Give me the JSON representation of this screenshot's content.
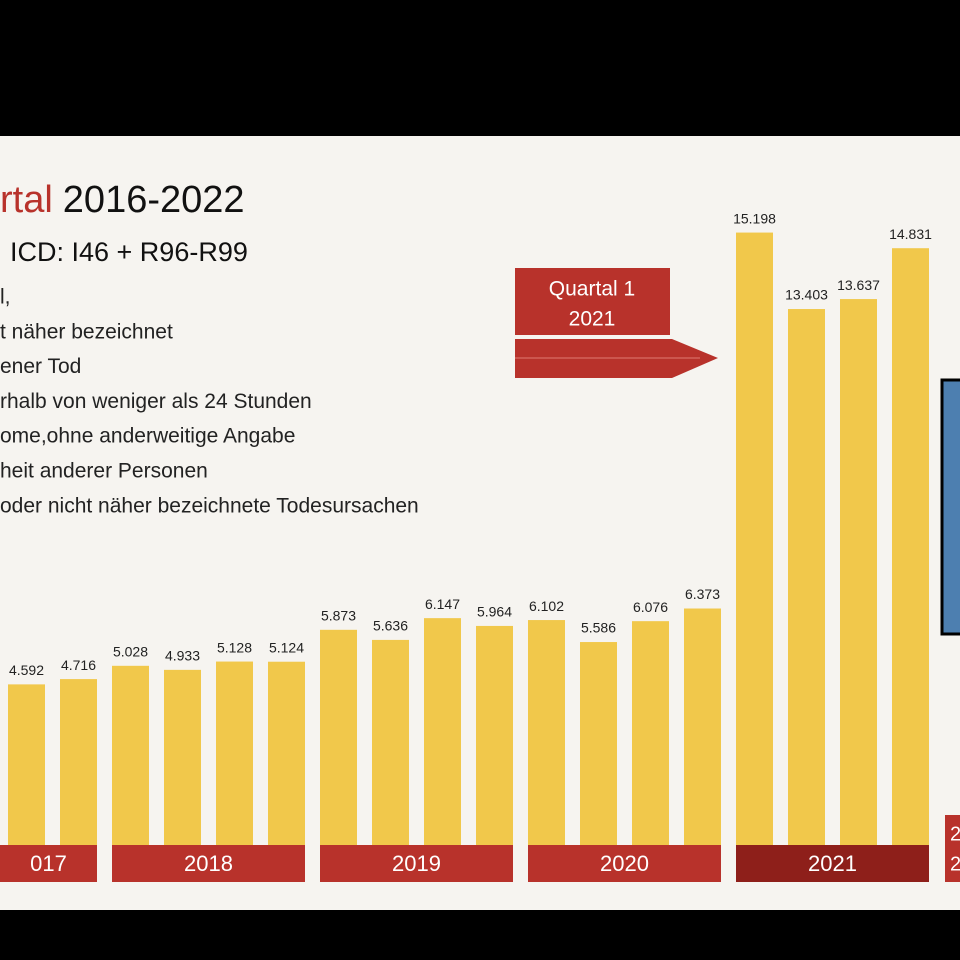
{
  "chart_data": {
    "type": "bar",
    "title_red": "rtal",
    "title": "2016-2022",
    "subtitle": "ICD: I46 + R96-R99",
    "lines": [
      "l,",
      "t näher bezeichnet",
      "ener Tod",
      "rhalb von weniger als 24 Stunden",
      "ome,ohne anderweitige Angabe",
      "heit anderer Personen",
      "oder nicht näher bezeichnete Todesursachen"
    ],
    "callout": [
      "Quartal 1",
      "2021"
    ],
    "values": [
      4592,
      4716,
      5028,
      4933,
      5128,
      5124,
      5873,
      5636,
      6147,
      5964,
      6102,
      5586,
      6076,
      6373,
      15198,
      13403,
      13637,
      14831
    ],
    "value_labels": [
      "4.592",
      "4.716",
      "5.028",
      "4.933",
      "5.128",
      "5.124",
      "5.873",
      "5.636",
      "6.147",
      "5.964",
      "6.102",
      "5.586",
      "6.076",
      "6.373",
      "15.198",
      "13.403",
      "13.637",
      "14.831"
    ],
    "color": "#f1c84b",
    "groups": [
      {
        "label": "017",
        "count": 2,
        "color": "#b8322b"
      },
      {
        "label": "2018",
        "count": 4,
        "color": "#b8322b"
      },
      {
        "label": "2019",
        "count": 4,
        "color": "#b8322b"
      },
      {
        "label": "2020",
        "count": 4,
        "color": "#b8322b"
      },
      {
        "label": "2021",
        "count": 4,
        "color": "#8e1f1a"
      }
    ],
    "partial_band": [
      "2",
      "2"
    ]
  }
}
